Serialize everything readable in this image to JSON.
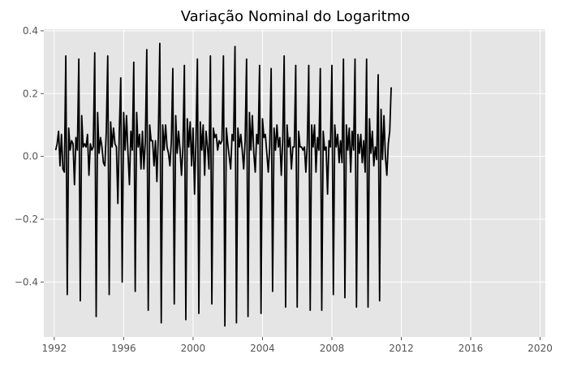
{
  "chart_data": {
    "type": "line",
    "title": "Variação Nominal do Logaritmo",
    "xlabel": "",
    "ylabel": "",
    "xlim": [
      1991.4,
      2020.3
    ],
    "ylim": [
      -0.575,
      0.405
    ],
    "x_ticks": [
      1992,
      1996,
      2000,
      2004,
      2008,
      2012,
      2016,
      2020
    ],
    "x_tick_labels": [
      "1992",
      "1996",
      "2000",
      "2004",
      "2008",
      "2012",
      "2016",
      "2020"
    ],
    "y_ticks": [
      -0.4,
      -0.2,
      0.0,
      0.2,
      0.4
    ],
    "y_tick_labels": [
      "−0.4",
      "−0.2",
      "0.0",
      "0.2",
      "0.4"
    ],
    "grid": true,
    "legend": "none",
    "colors": {
      "background": "#e5e5e5",
      "grid": "#ffffff",
      "line": "#000000"
    },
    "series": [
      {
        "frequency": "monthly",
        "start": "1992-02",
        "values": [
          0.02,
          0.04,
          0.08,
          -0.03,
          0.07,
          -0.04,
          -0.05,
          0.32,
          -0.44,
          0.09,
          0.02,
          0.05,
          0.04,
          -0.09,
          0.06,
          0.02,
          0.31,
          -0.46,
          0.13,
          0.03,
          0.04,
          0.03,
          0.07,
          -0.06,
          0.04,
          0.02,
          0.03,
          0.33,
          -0.51,
          0.14,
          0.01,
          0.06,
          0.03,
          -0.02,
          -0.03,
          0.08,
          0.32,
          -0.44,
          0.11,
          0.03,
          0.09,
          0.04,
          0.03,
          -0.15,
          0.08,
          0.25,
          -0.4,
          0.14,
          0.02,
          0.13,
          0.01,
          -0.09,
          0.08,
          0.02,
          0.3,
          -0.43,
          0.14,
          0.03,
          0.07,
          -0.04,
          0.08,
          -0.04,
          0.05,
          0.34,
          -0.49,
          0.1,
          0.05,
          0.05,
          -0.03,
          0.05,
          -0.08,
          0.07,
          0.36,
          -0.53,
          0.1,
          0.02,
          0.1,
          0.03,
          0.01,
          -0.03,
          0.05,
          0.28,
          -0.47,
          0.13,
          0.01,
          0.08,
          0.02,
          -0.06,
          0.03,
          0.29,
          -0.52,
          0.12,
          0.03,
          0.11,
          -0.03,
          0.09,
          -0.12,
          0.05,
          0.31,
          -0.5,
          0.11,
          0.02,
          0.1,
          -0.06,
          0.08,
          0.03,
          -0.04,
          0.32,
          -0.47,
          0.09,
          0.06,
          0.07,
          0.02,
          0.05,
          0.04,
          0.05,
          0.32,
          -0.54,
          0.09,
          0.04,
          0.0,
          -0.04,
          0.07,
          0.05,
          0.35,
          -0.53,
          0.09,
          0.03,
          0.07,
          0.02,
          -0.04,
          0.05,
          0.31,
          -0.51,
          0.14,
          0.02,
          0.13,
          0.01,
          -0.05,
          0.07,
          0.04,
          0.29,
          -0.5,
          0.12,
          0.06,
          0.07,
          0.01,
          -0.05,
          0.03,
          0.28,
          -0.43,
          0.09,
          0.02,
          0.1,
          0.03,
          0.06,
          -0.06,
          0.05,
          0.32,
          -0.48,
          0.1,
          0.03,
          0.06,
          -0.04,
          0.03,
          0.03,
          0.29,
          -0.48,
          0.08,
          0.03,
          0.03,
          0.02,
          0.03,
          -0.05,
          0.04,
          0.29,
          -0.49,
          0.1,
          0.03,
          0.1,
          -0.05,
          0.06,
          0.02,
          0.28,
          -0.49,
          0.08,
          0.02,
          0.03,
          -0.12,
          0.05,
          0.03,
          0.29,
          -0.44,
          0.1,
          0.03,
          0.07,
          -0.02,
          0.05,
          -0.02,
          0.31,
          -0.45,
          0.1,
          0.02,
          0.09,
          -0.05,
          0.08,
          0.02,
          0.31,
          -0.48,
          0.07,
          0.01,
          0.07,
          -0.02,
          0.05,
          -0.05,
          0.31,
          -0.48,
          0.12,
          0.01,
          0.08,
          -0.03,
          0.03,
          -0.01,
          0.26,
          -0.46,
          0.15,
          -0.01,
          0.13,
          0.0,
          -0.06,
          0.04,
          0.08,
          0.22
        ]
      }
    ]
  }
}
